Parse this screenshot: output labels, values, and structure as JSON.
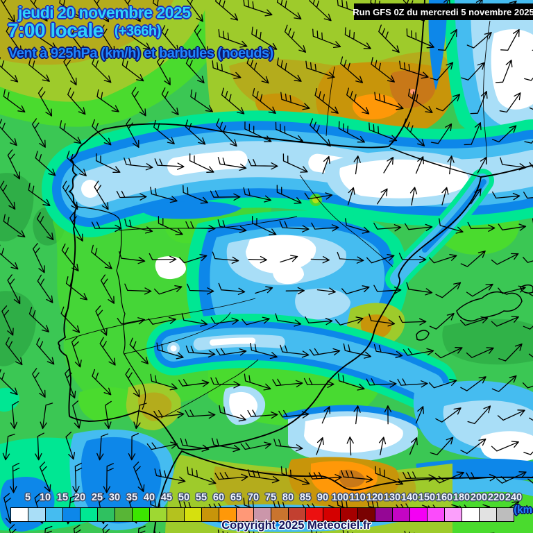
{
  "header": {
    "date_line": "jeudi 20 novembre 2025",
    "time_line": "7:00 locale",
    "offset_label": "(+366h)",
    "subtitle": "Vent à 925hPa (km/h) et barbules (noeuds)",
    "run_info": "Run GFS 0Z du mercredi 5 novembre 2025"
  },
  "footer": {
    "copyright": "Copyright 2025 Meteociel.fr",
    "unit_label": "(km"
  },
  "legend": {
    "values": [
      5,
      10,
      15,
      20,
      25,
      30,
      35,
      40,
      45,
      50,
      55,
      60,
      65,
      70,
      75,
      80,
      85,
      90,
      100,
      110,
      120,
      130,
      140,
      150,
      160,
      180,
      200,
      220,
      240
    ],
    "colors": [
      "#ffffff",
      "#a9def7",
      "#45bcf0",
      "#0d87e9",
      "#00e793",
      "#2fc160",
      "#58b536",
      "#3ce600",
      "#9ed832",
      "#b4c21e",
      "#d6e00e",
      "#c8950a",
      "#ff9808",
      "#ff9877",
      "#cb96aa",
      "#c9742e",
      "#c24030",
      "#ec1010",
      "#d40000",
      "#a60000",
      "#7a0202",
      "#950795",
      "#c405c4",
      "#f400f4",
      "#fb4bfb",
      "#fb9ffb",
      "#ffffff",
      "#e2e2e2",
      "#bdbdbd"
    ]
  },
  "colors": {
    "title_text": "#2fd2fa",
    "title_outline": "#1d2fc0",
    "subtitle_text": "#1e86ff",
    "subtitle_outline": "#0d1670",
    "run_box_bg": "#000000",
    "run_box_text": "#ffffff",
    "legend_label_text": "#eef4ff",
    "legend_label_outline": "#3e4c6a",
    "copyright_text": "#14145c",
    "copyright_outline": "#ffffff",
    "ocean_green": "#3bc754"
  }
}
